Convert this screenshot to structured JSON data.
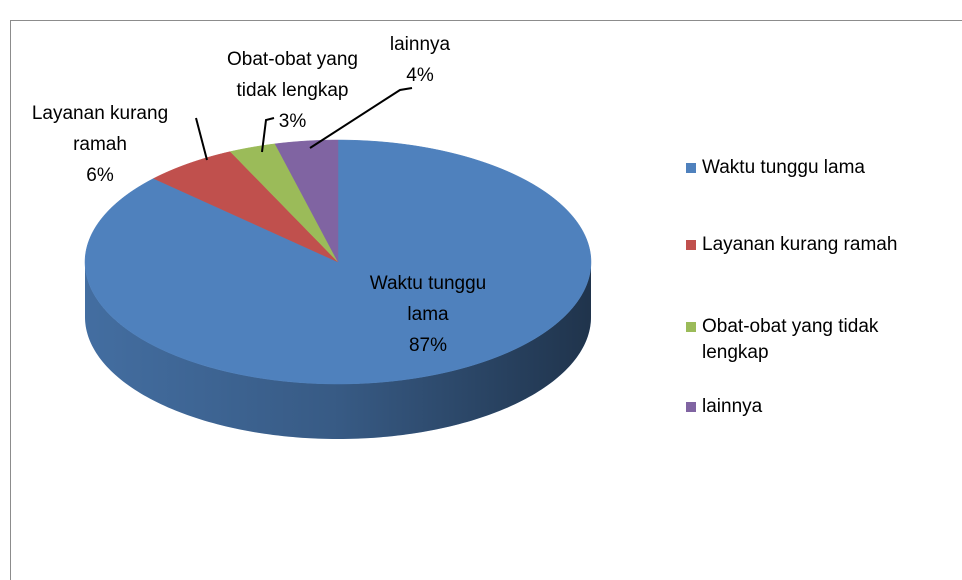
{
  "chart_data": {
    "type": "pie",
    "categories": [
      "Waktu tunggu lama",
      "Layanan kurang ramah",
      "Obat-obat yang tidak lengkap",
      "lainnya"
    ],
    "values": [
      87,
      6,
      3,
      4
    ],
    "value_labels": [
      "87%",
      "6%",
      "3%",
      "4%"
    ],
    "colors": [
      "#4f81bd",
      "#c0504d",
      "#9bbb59",
      "#8064a2"
    ],
    "legend": "right"
  }
}
